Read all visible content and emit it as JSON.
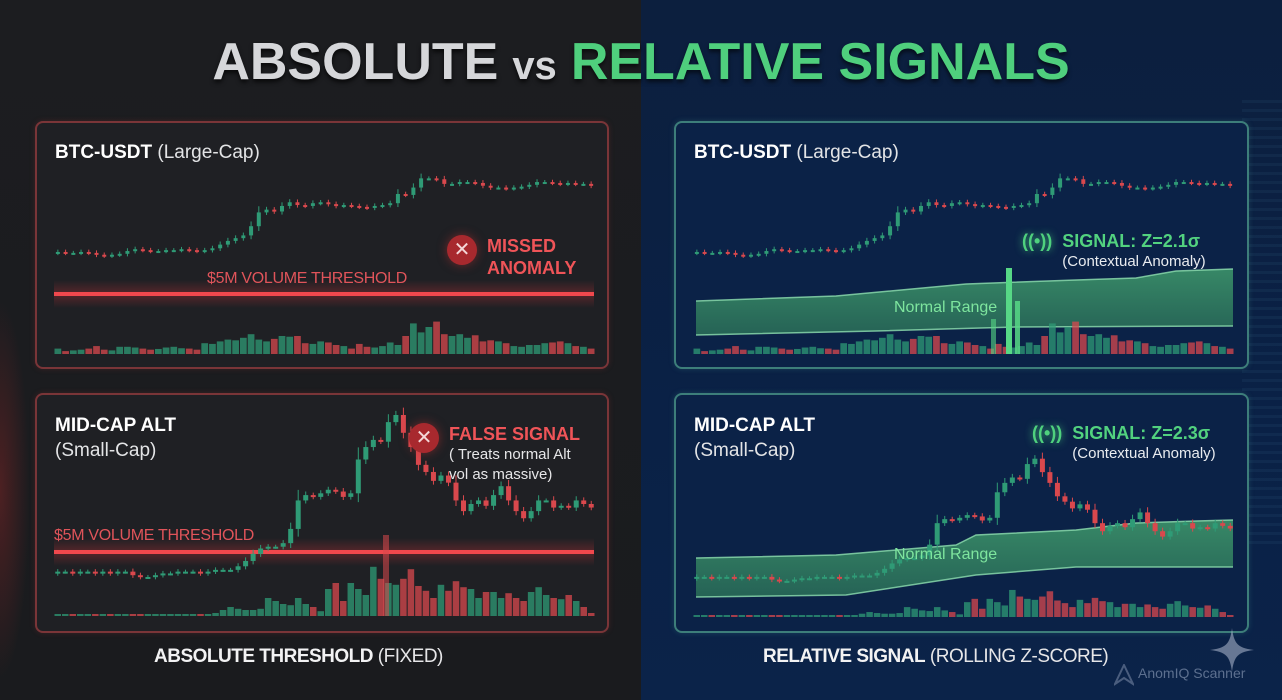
{
  "title": {
    "left": "ABSOLUTE",
    "vs": "vs",
    "right": "RELATIVE SIGNALS"
  },
  "colors": {
    "up": "#2f9b76",
    "down": "#d9484d",
    "threshold": "#f0484d",
    "signal_green": "#52d27f",
    "band_fill": "#2f7f5a",
    "left_bg": "#1c1d20",
    "right_bg": "#0b2247"
  },
  "left": {
    "caption_bold": "ABSOLUTE THRESHOLD",
    "caption_paren": "(FIXED)",
    "btc": {
      "title": "BTC-USDT",
      "subtitle": "(Large-Cap)",
      "threshold_label": "$5M VOLUME THRESHOLD",
      "callout_head_1": "MISSED",
      "callout_head_2": "ANOMALY",
      "callout_icon": "x-circle-icon"
    },
    "alt": {
      "title": "MID-CAP ALT",
      "subtitle": "(Small-Cap)",
      "threshold_label": "$5M VOLUME THRESHOLD",
      "callout_head": "FALSE SIGNAL",
      "callout_note_1": "( Treats normal Alt",
      "callout_note_2": "vol as massive)",
      "callout_icon": "x-circle-icon"
    }
  },
  "right": {
    "caption_bold": "RELATIVE SIGNAL",
    "caption_paren": "(ROLLING Z-SCORE)",
    "btc": {
      "title": "BTC-USDT",
      "subtitle": "(Large-Cap)",
      "signal_icon": "((•))",
      "signal_head": "SIGNAL: Z=2.1σ",
      "signal_note": "(Contextual Anomaly)",
      "band_label": "Normal Range"
    },
    "alt": {
      "title": "MID-CAP ALT",
      "subtitle": "(Small-Cap)",
      "signal_icon": "((•))",
      "signal_head": "SIGNAL: Z=2.3σ",
      "signal_note": "(Contextual Anomaly)",
      "band_label": "Normal Range"
    }
  },
  "watermark": "AnomIQ Scanner",
  "chart_data": [
    {
      "type": "candlestick+bar",
      "title": "BTC-USDT (Large-Cap) — Absolute Threshold",
      "annotation": "MISSED ANOMALY",
      "threshold_label": "$5M VOLUME THRESHOLD",
      "threshold_y_norm": 0.0,
      "price_close": [
        0.12,
        0.11,
        0.11,
        0.12,
        0.11,
        0.09,
        0.08,
        0.09,
        0.1,
        0.13,
        0.15,
        0.14,
        0.13,
        0.13,
        0.14,
        0.14,
        0.15,
        0.14,
        0.13,
        0.14,
        0.16,
        0.2,
        0.24,
        0.27,
        0.3,
        0.4,
        0.55,
        0.58,
        0.56,
        0.62,
        0.66,
        0.63,
        0.62,
        0.65,
        0.66,
        0.64,
        0.62,
        0.63,
        0.62,
        0.61,
        0.6,
        0.62,
        0.63,
        0.65,
        0.75,
        0.74,
        0.82,
        0.92,
        0.92,
        0.91,
        0.86,
        0.86,
        0.88,
        0.88,
        0.87,
        0.84,
        0.82,
        0.82,
        0.81,
        0.82,
        0.83,
        0.85,
        0.88,
        0.88,
        0.87,
        0.86,
        0.87,
        0.86,
        0.86,
        0.84
      ],
      "volume": [
        0.15,
        0.08,
        0.1,
        0.12,
        0.15,
        0.22,
        0.12,
        0.1,
        0.2,
        0.2,
        0.18,
        0.15,
        0.12,
        0.14,
        0.18,
        0.2,
        0.16,
        0.15,
        0.12,
        0.3,
        0.28,
        0.35,
        0.4,
        0.38,
        0.45,
        0.55,
        0.4,
        0.35,
        0.42,
        0.5,
        0.48,
        0.5,
        0.3,
        0.28,
        0.35,
        0.32,
        0.25,
        0.22,
        0.15,
        0.28,
        0.2,
        0.18,
        0.22,
        0.32,
        0.25,
        0.5,
        0.85,
        0.6,
        0.75,
        0.9,
        0.55,
        0.5,
        0.55,
        0.45,
        0.52,
        0.35,
        0.38,
        0.35,
        0.3,
        0.22,
        0.2,
        0.25,
        0.25,
        0.3,
        0.32,
        0.35,
        0.3,
        0.22,
        0.2,
        0.15
      ]
    },
    {
      "type": "candlestick+bar",
      "title": "MID-CAP ALT (Small-Cap) — Absolute Threshold",
      "annotation": "FALSE SIGNAL (Treats normal Alt vol as massive)",
      "threshold_label": "$5M VOLUME THRESHOLD",
      "price_close": [
        0.12,
        0.12,
        0.11,
        0.12,
        0.12,
        0.11,
        0.12,
        0.11,
        0.12,
        0.12,
        0.1,
        0.09,
        0.09,
        0.1,
        0.11,
        0.11,
        0.12,
        0.12,
        0.12,
        0.11,
        0.12,
        0.13,
        0.13,
        0.13,
        0.15,
        0.18,
        0.22,
        0.25,
        0.26,
        0.26,
        0.28,
        0.36,
        0.52,
        0.55,
        0.54,
        0.56,
        0.58,
        0.57,
        0.54,
        0.56,
        0.75,
        0.82,
        0.86,
        0.85,
        0.96,
        1.0,
        0.9,
        0.82,
        0.72,
        0.68,
        0.63,
        0.66,
        0.62,
        0.52,
        0.46,
        0.5,
        0.52,
        0.49,
        0.55,
        0.6,
        0.52,
        0.46,
        0.42,
        0.46,
        0.52,
        0.52,
        0.48,
        0.49,
        0.48,
        0.52,
        0.5,
        0.48
      ],
      "volume": [
        0.02,
        0.02,
        0.02,
        0.02,
        0.02,
        0.03,
        0.02,
        0.02,
        0.02,
        0.03,
        0.02,
        0.02,
        0.02,
        0.02,
        0.02,
        0.02,
        0.02,
        0.02,
        0.02,
        0.02,
        0.03,
        0.05,
        0.1,
        0.15,
        0.12,
        0.1,
        0.1,
        0.12,
        0.3,
        0.25,
        0.2,
        0.18,
        0.3,
        0.2,
        0.15,
        0.08,
        0.45,
        0.55,
        0.25,
        0.55,
        0.45,
        0.35,
        0.82,
        0.62,
        0.55,
        0.52,
        0.62,
        0.78,
        0.5,
        0.42,
        0.3,
        0.52,
        0.42,
        0.58,
        0.48,
        0.45,
        0.3,
        0.4,
        0.4,
        0.3,
        0.38,
        0.3,
        0.25,
        0.4,
        0.48,
        0.35,
        0.3,
        0.28,
        0.35,
        0.25,
        0.15,
        0.05
      ]
    },
    {
      "type": "candlestick+bar+band",
      "title": "BTC-USDT (Large-Cap) — Relative Signal",
      "annotation": "SIGNAL: Z=2.1σ (Contextual Anomaly)",
      "band_label": "Normal Range",
      "signal_z": 2.1
    },
    {
      "type": "candlestick+bar+band",
      "title": "MID-CAP ALT (Small-Cap) — Relative Signal",
      "annotation": "SIGNAL: Z=2.3σ (Contextual Anomaly)",
      "band_label": "Normal Range",
      "signal_z": 2.3
    }
  ]
}
